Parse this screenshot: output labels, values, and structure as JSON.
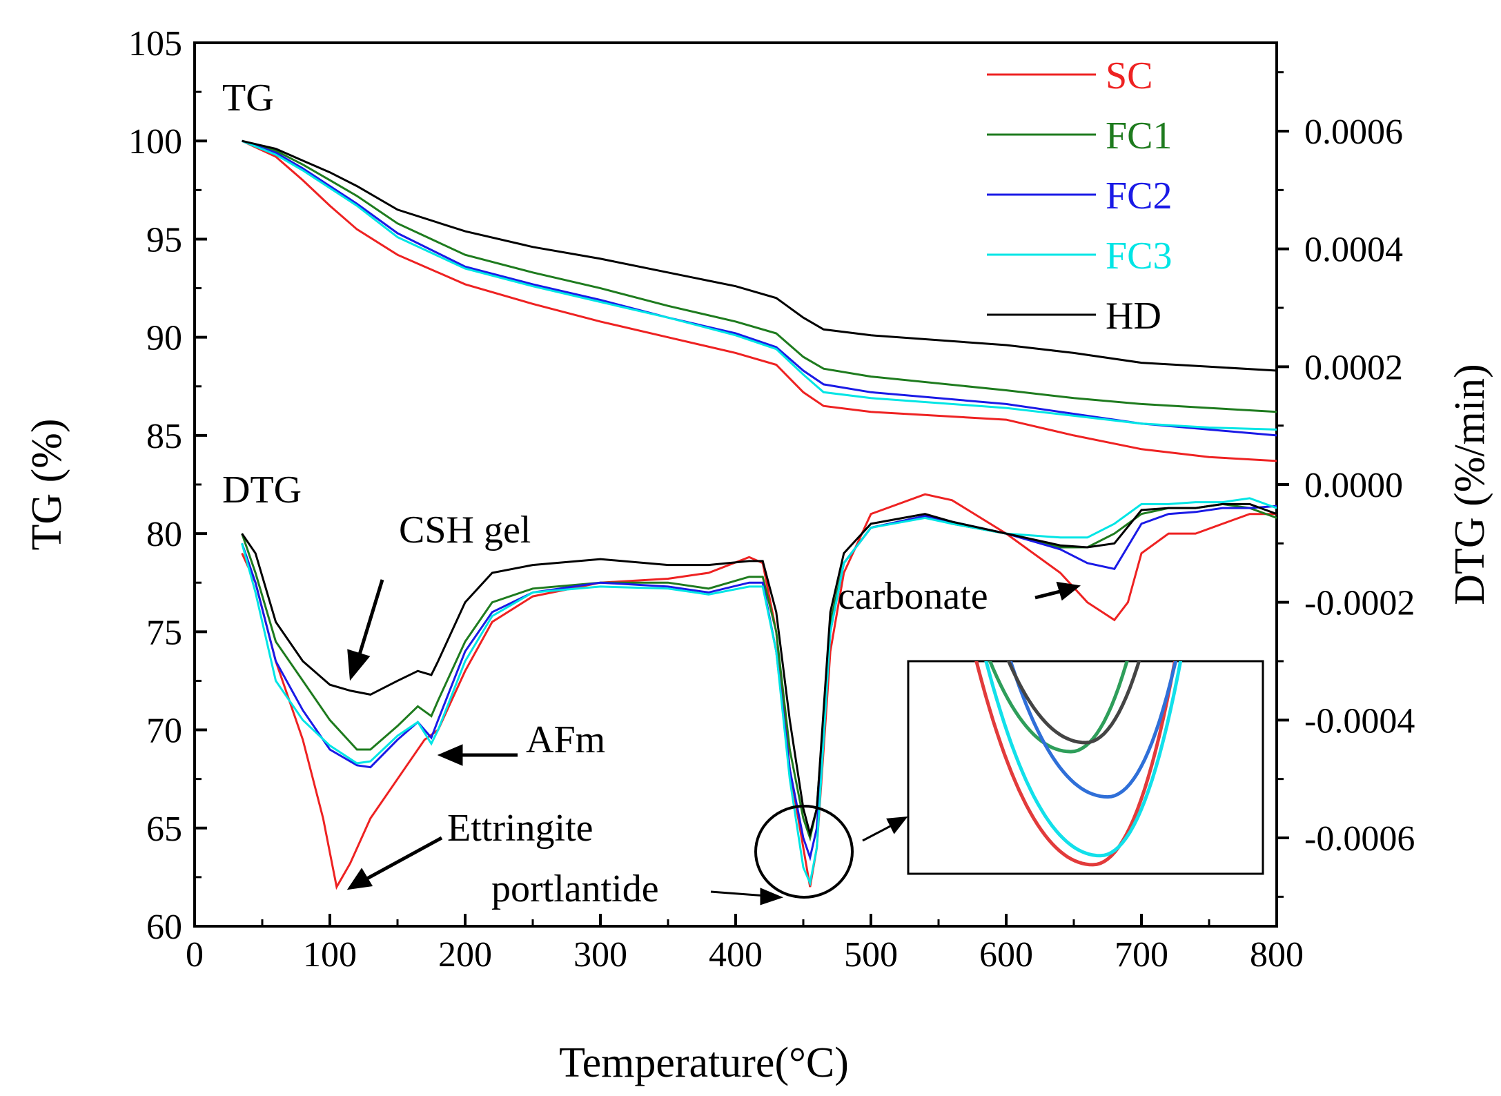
{
  "chart_data": {
    "type": "line",
    "xlabel": "Temperature(°C)",
    "ylabel_left": "TG (%)",
    "ylabel_right": "DTG (%/min)",
    "xlim": [
      0,
      800
    ],
    "ylim_left": [
      60,
      105
    ],
    "ylim_right": [
      -0.00075,
      0.00075
    ],
    "x_ticks": [
      "0",
      "100",
      "200",
      "300",
      "400",
      "500",
      "600",
      "700",
      "800"
    ],
    "y_left_ticks": [
      "60",
      "65",
      "70",
      "75",
      "80",
      "85",
      "90",
      "95",
      "100",
      "105"
    ],
    "y_right_ticks": [
      "-0.0006",
      "-0.0004",
      "-0.0002",
      "0.0000",
      "0.0002",
      "0.0004",
      "0.0006"
    ],
    "y_right_tick_values": [
      -0.0006,
      -0.0004,
      -0.0002,
      0.0,
      0.0002,
      0.0004,
      0.0006
    ],
    "series_colors": {
      "SC": "#ee2222",
      "FC1": "#1e7b1e",
      "FC2": "#1a1ae6",
      "FC3": "#00e5e5",
      "HD": "#000000"
    },
    "legend": [
      "SC",
      "FC1",
      "FC2",
      "FC3",
      "HD"
    ],
    "tg_series": [
      {
        "name": "SC",
        "x": [
          35,
          60,
          80,
          100,
          120,
          150,
          200,
          250,
          300,
          350,
          400,
          430,
          450,
          465,
          500,
          600,
          650,
          700,
          750,
          800
        ],
        "values": [
          100,
          99.2,
          98.0,
          96.7,
          95.5,
          94.2,
          92.7,
          91.7,
          90.8,
          90.0,
          89.2,
          88.6,
          87.2,
          86.5,
          86.2,
          85.8,
          85.0,
          84.3,
          83.9,
          83.7
        ]
      },
      {
        "name": "FC1",
        "x": [
          35,
          60,
          80,
          100,
          120,
          150,
          200,
          250,
          300,
          350,
          400,
          430,
          450,
          465,
          500,
          600,
          650,
          700,
          750,
          800
        ],
        "values": [
          100,
          99.5,
          98.8,
          98.0,
          97.2,
          95.8,
          94.2,
          93.3,
          92.5,
          91.6,
          90.8,
          90.2,
          89.0,
          88.4,
          88.0,
          87.3,
          86.9,
          86.6,
          86.4,
          86.2
        ]
      },
      {
        "name": "FC2",
        "x": [
          35,
          60,
          80,
          100,
          120,
          150,
          200,
          250,
          300,
          350,
          400,
          430,
          450,
          465,
          500,
          600,
          650,
          700,
          750,
          800
        ],
        "values": [
          100,
          99.4,
          98.6,
          97.7,
          96.8,
          95.3,
          93.6,
          92.7,
          91.9,
          91.0,
          90.2,
          89.5,
          88.3,
          87.6,
          87.2,
          86.6,
          86.1,
          85.6,
          85.3,
          85.0
        ]
      },
      {
        "name": "FC3",
        "x": [
          35,
          60,
          80,
          100,
          120,
          150,
          200,
          250,
          300,
          350,
          400,
          430,
          450,
          465,
          500,
          600,
          650,
          700,
          750,
          800
        ],
        "values": [
          100,
          99.3,
          98.5,
          97.6,
          96.7,
          95.1,
          93.5,
          92.6,
          91.8,
          91.0,
          90.1,
          89.4,
          88.1,
          87.2,
          86.9,
          86.4,
          86.0,
          85.6,
          85.4,
          85.3
        ]
      },
      {
        "name": "HD",
        "x": [
          35,
          60,
          80,
          100,
          120,
          150,
          200,
          250,
          300,
          350,
          400,
          430,
          450,
          465,
          500,
          600,
          650,
          700,
          750,
          800
        ],
        "values": [
          100,
          99.6,
          99.0,
          98.4,
          97.7,
          96.5,
          95.4,
          94.6,
          94.0,
          93.3,
          92.6,
          92.0,
          91.0,
          90.4,
          90.1,
          89.6,
          89.2,
          88.7,
          88.5,
          88.3
        ]
      }
    ],
    "dtg_series": [
      {
        "name": "SC",
        "x": [
          35,
          45,
          60,
          80,
          95,
          105,
          115,
          130,
          150,
          170,
          180,
          200,
          220,
          250,
          300,
          350,
          380,
          410,
          420,
          430,
          440,
          450,
          455,
          460,
          470,
          480,
          500,
          540,
          560,
          600,
          640,
          660,
          680,
          690,
          700,
          720,
          740,
          760,
          780,
          800
        ],
        "values": [
          79.0,
          77.5,
          73.5,
          69.5,
          65.5,
          62.0,
          63.2,
          65.5,
          67.5,
          69.5,
          70.0,
          73.0,
          75.5,
          76.8,
          77.5,
          77.7,
          78.0,
          78.8,
          78.5,
          75.0,
          68.0,
          64.0,
          62.0,
          64.0,
          74.0,
          78.0,
          81.0,
          82.0,
          81.7,
          80.0,
          78.0,
          76.5,
          75.6,
          76.5,
          79.0,
          80.0,
          80.0,
          80.5,
          81.0,
          81.0
        ]
      },
      {
        "name": "FC1",
        "x": [
          35,
          45,
          60,
          80,
          100,
          120,
          130,
          150,
          165,
          175,
          180,
          200,
          220,
          250,
          300,
          350,
          380,
          410,
          420,
          430,
          440,
          450,
          455,
          460,
          470,
          480,
          500,
          540,
          560,
          600,
          640,
          660,
          680,
          700,
          720,
          740,
          760,
          780,
          800
        ],
        "values": [
          80.0,
          78.0,
          74.5,
          72.5,
          70.5,
          69.0,
          69.0,
          70.2,
          71.2,
          70.7,
          71.5,
          74.5,
          76.5,
          77.2,
          77.5,
          77.5,
          77.2,
          77.8,
          77.8,
          75.0,
          69.0,
          65.5,
          64.5,
          66.0,
          75.5,
          78.5,
          80.3,
          80.9,
          80.5,
          80.0,
          79.3,
          79.3,
          80.0,
          81.0,
          81.3,
          81.3,
          81.5,
          81.3,
          80.8
        ]
      },
      {
        "name": "FC2",
        "x": [
          35,
          45,
          60,
          80,
          100,
          120,
          130,
          150,
          165,
          175,
          180,
          200,
          220,
          250,
          300,
          350,
          380,
          410,
          420,
          430,
          440,
          450,
          455,
          460,
          470,
          480,
          500,
          540,
          560,
          600,
          640,
          660,
          680,
          700,
          720,
          740,
          760,
          780,
          800
        ],
        "values": [
          79.5,
          77.5,
          73.5,
          71.0,
          69.0,
          68.2,
          68.1,
          69.5,
          70.4,
          69.6,
          70.5,
          74.0,
          76.0,
          77.0,
          77.5,
          77.3,
          77.0,
          77.5,
          77.5,
          74.0,
          68.0,
          64.5,
          63.5,
          65.0,
          75.0,
          78.5,
          80.3,
          80.9,
          80.6,
          80.0,
          79.2,
          78.5,
          78.2,
          80.5,
          81.0,
          81.1,
          81.3,
          81.3,
          81.4
        ]
      },
      {
        "name": "FC3",
        "x": [
          35,
          45,
          60,
          80,
          100,
          120,
          130,
          150,
          165,
          175,
          180,
          200,
          220,
          250,
          300,
          350,
          380,
          410,
          420,
          430,
          440,
          450,
          455,
          460,
          470,
          480,
          500,
          540,
          560,
          600,
          640,
          660,
          680,
          700,
          720,
          740,
          760,
          780,
          800
        ],
        "values": [
          79.5,
          77.0,
          72.5,
          70.5,
          69.2,
          68.3,
          68.4,
          69.7,
          70.4,
          69.3,
          70.0,
          73.5,
          75.8,
          77.0,
          77.3,
          77.2,
          76.9,
          77.3,
          77.3,
          74.0,
          67.5,
          63.0,
          62.2,
          64.0,
          75.0,
          78.5,
          80.3,
          80.8,
          80.5,
          80.0,
          79.8,
          79.8,
          80.5,
          81.5,
          81.5,
          81.6,
          81.6,
          81.8,
          81.3
        ]
      },
      {
        "name": "HD",
        "x": [
          35,
          45,
          60,
          80,
          100,
          115,
          130,
          150,
          165,
          175,
          180,
          200,
          220,
          250,
          300,
          350,
          380,
          410,
          420,
          430,
          440,
          450,
          455,
          460,
          470,
          480,
          500,
          540,
          560,
          600,
          640,
          660,
          680,
          700,
          720,
          740,
          760,
          780,
          800
        ],
        "values": [
          80.0,
          79.0,
          75.5,
          73.5,
          72.3,
          72.0,
          71.8,
          72.5,
          73.0,
          72.8,
          73.5,
          76.5,
          78.0,
          78.4,
          78.7,
          78.4,
          78.4,
          78.6,
          78.6,
          76.0,
          70.5,
          66.0,
          64.7,
          66.0,
          76.0,
          79.0,
          80.5,
          81.0,
          80.6,
          80.0,
          79.4,
          79.3,
          79.5,
          81.2,
          81.3,
          81.3,
          81.5,
          81.5,
          81.0
        ]
      }
    ],
    "annotations": [
      "TG",
      "DTG",
      "CSH gel",
      "AFm",
      "Ettringite",
      "portlantide",
      "carbonate"
    ],
    "inset": {
      "description_label": "zoom of DTG minimum near 455",
      "x_range": [
        443,
        467
      ],
      "y_range": [
        61.8,
        66.5
      ]
    }
  }
}
